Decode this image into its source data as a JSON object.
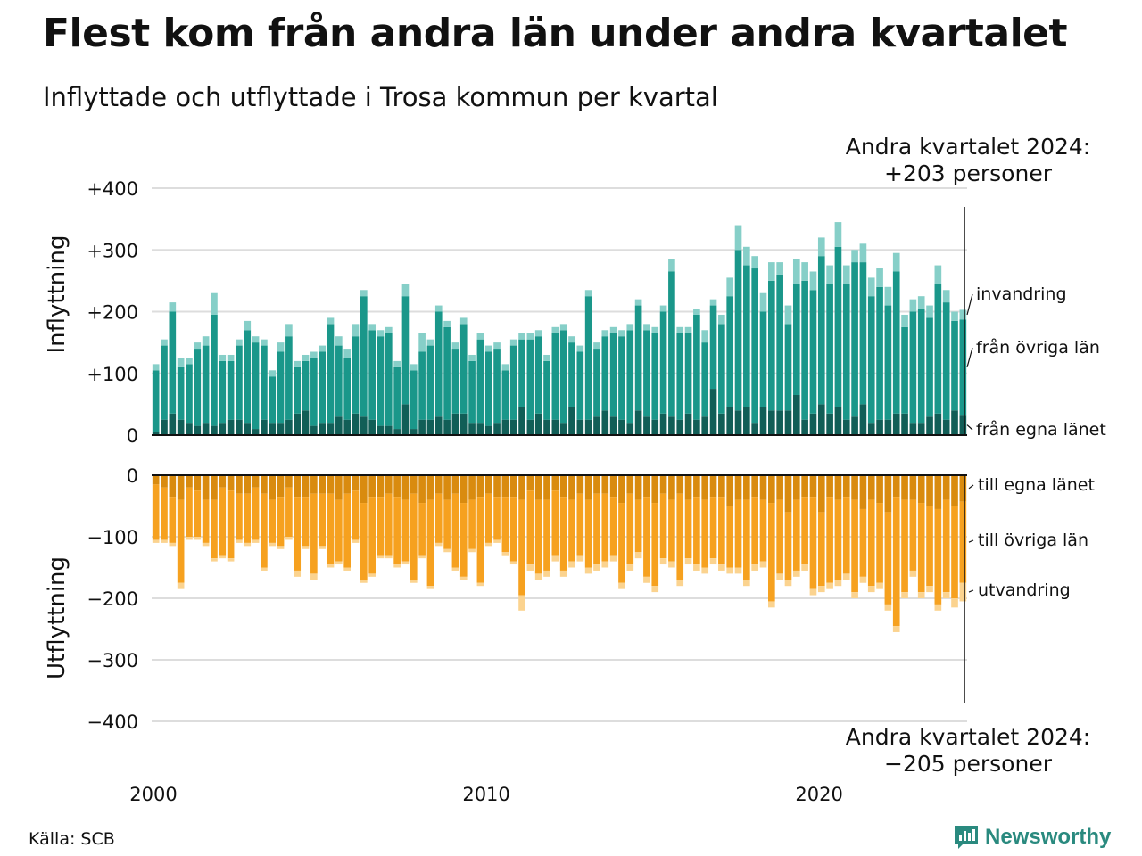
{
  "title": "Flest kom från andra län under andra kvartalet",
  "subtitle": "Inflyttade och utflyttade i Trosa kommun per kvartal",
  "annotations": {
    "top_line1": "Andra kvartalet 2024:",
    "top_line2": "+203 personer",
    "bottom_line1": "Andra kvartalet 2024:",
    "bottom_line2": "−205 personer"
  },
  "source": "Källa: SCB",
  "brand": "Newsworthy",
  "colors": {
    "in_egna": "#115e57",
    "in_ovriga": "#1a978a",
    "in_invandring": "#86cfc8",
    "out_egna": "#d98b0f",
    "out_ovriga": "#f6a11f",
    "out_utvandring": "#fbd38f",
    "grid": "#dddddd",
    "brand": "#2a8a7f"
  },
  "chart_data": {
    "type": "bar",
    "stacked": true,
    "x": [
      "2000Q1",
      "2000Q2",
      "2000Q3",
      "2000Q4",
      "2001Q1",
      "2001Q2",
      "2001Q3",
      "2001Q4",
      "2002Q1",
      "2002Q2",
      "2002Q3",
      "2002Q4",
      "2003Q1",
      "2003Q2",
      "2003Q3",
      "2003Q4",
      "2004Q1",
      "2004Q2",
      "2004Q3",
      "2004Q4",
      "2005Q1",
      "2005Q2",
      "2005Q3",
      "2005Q4",
      "2006Q1",
      "2006Q2",
      "2006Q3",
      "2006Q4",
      "2007Q1",
      "2007Q2",
      "2007Q3",
      "2007Q4",
      "2008Q1",
      "2008Q2",
      "2008Q3",
      "2008Q4",
      "2009Q1",
      "2009Q2",
      "2009Q3",
      "2009Q4",
      "2010Q1",
      "2010Q2",
      "2010Q3",
      "2010Q4",
      "2011Q1",
      "2011Q2",
      "2011Q3",
      "2011Q4",
      "2012Q1",
      "2012Q2",
      "2012Q3",
      "2012Q4",
      "2013Q1",
      "2013Q2",
      "2013Q3",
      "2013Q4",
      "2014Q1",
      "2014Q2",
      "2014Q3",
      "2014Q4",
      "2015Q1",
      "2015Q2",
      "2015Q3",
      "2015Q4",
      "2016Q1",
      "2016Q2",
      "2016Q3",
      "2016Q4",
      "2017Q1",
      "2017Q2",
      "2017Q3",
      "2017Q4",
      "2018Q1",
      "2018Q2",
      "2018Q3",
      "2018Q4",
      "2019Q1",
      "2019Q2",
      "2019Q3",
      "2019Q4",
      "2020Q1",
      "2020Q2",
      "2020Q3",
      "2020Q4",
      "2021Q1",
      "2021Q2",
      "2021Q3",
      "2021Q4",
      "2022Q1",
      "2022Q2",
      "2022Q3",
      "2022Q4",
      "2023Q1",
      "2023Q2",
      "2023Q3",
      "2023Q4",
      "2024Q1",
      "2024Q2"
    ],
    "x_tick_labels": [
      "2000",
      "2010",
      "2020"
    ],
    "upper": {
      "ylabel": "Inflyttning",
      "ylim": [
        0,
        400
      ],
      "y_ticks": [
        "+400",
        "+300",
        "+200",
        "+100",
        "0"
      ],
      "series": [
        {
          "name": "från egna länet",
          "values": [
            5,
            25,
            35,
            25,
            20,
            15,
            20,
            15,
            20,
            25,
            25,
            20,
            10,
            25,
            20,
            20,
            25,
            35,
            40,
            15,
            20,
            20,
            30,
            25,
            35,
            30,
            25,
            15,
            15,
            10,
            50,
            10,
            25,
            25,
            30,
            25,
            35,
            35,
            20,
            20,
            15,
            20,
            25,
            25,
            45,
            25,
            35,
            25,
            25,
            20,
            45,
            25,
            25,
            30,
            40,
            30,
            25,
            20,
            40,
            30,
            25,
            35,
            30,
            25,
            35,
            25,
            30,
            75,
            35,
            45,
            40,
            45,
            20,
            45,
            40,
            40,
            40,
            65,
            25,
            35,
            50,
            35,
            45,
            25,
            30,
            50,
            20,
            25,
            25,
            35,
            35,
            20,
            20,
            30,
            35,
            25,
            40,
            33
          ]
        },
        {
          "name": "från övriga län",
          "values": [
            100,
            120,
            165,
            85,
            95,
            125,
            125,
            180,
            100,
            95,
            120,
            150,
            140,
            120,
            75,
            115,
            135,
            75,
            80,
            110,
            115,
            160,
            115,
            100,
            125,
            195,
            145,
            145,
            150,
            100,
            175,
            95,
            110,
            120,
            170,
            150,
            105,
            145,
            100,
            135,
            120,
            120,
            80,
            120,
            110,
            130,
            125,
            95,
            140,
            150,
            105,
            110,
            200,
            110,
            120,
            135,
            135,
            150,
            170,
            140,
            140,
            165,
            235,
            140,
            130,
            170,
            120,
            135,
            145,
            180,
            260,
            230,
            250,
            155,
            210,
            220,
            140,
            180,
            225,
            200,
            240,
            210,
            260,
            220,
            250,
            230,
            205,
            215,
            185,
            230,
            140,
            180,
            185,
            160,
            210,
            190,
            145,
            154
          ]
        },
        {
          "name": "invandring",
          "values": [
            10,
            10,
            15,
            15,
            10,
            10,
            15,
            35,
            10,
            10,
            10,
            15,
            10,
            10,
            10,
            15,
            20,
            10,
            10,
            10,
            10,
            10,
            15,
            15,
            20,
            10,
            10,
            10,
            10,
            10,
            20,
            10,
            30,
            10,
            10,
            10,
            10,
            10,
            10,
            10,
            10,
            10,
            10,
            10,
            10,
            10,
            10,
            10,
            10,
            10,
            10,
            10,
            10,
            10,
            10,
            10,
            10,
            10,
            10,
            10,
            10,
            10,
            20,
            10,
            10,
            10,
            20,
            10,
            15,
            30,
            40,
            30,
            20,
            30,
            30,
            20,
            30,
            40,
            30,
            30,
            30,
            30,
            40,
            30,
            20,
            30,
            30,
            30,
            30,
            30,
            20,
            20,
            20,
            20,
            30,
            20,
            15,
            16
          ]
        }
      ]
    },
    "lower": {
      "ylabel": "Utflyttning",
      "ylim": [
        -400,
        0
      ],
      "y_ticks": [
        "0",
        "−100",
        "−200",
        "−300",
        "−400"
      ],
      "series": [
        {
          "name": "till egna länet",
          "values": [
            -15,
            -20,
            -35,
            -40,
            -20,
            -25,
            -40,
            -40,
            -20,
            -25,
            -30,
            -30,
            -20,
            -30,
            -40,
            -35,
            -20,
            -35,
            -35,
            -30,
            -30,
            -30,
            -40,
            -30,
            -25,
            -45,
            -35,
            -35,
            -30,
            -35,
            -40,
            -30,
            -45,
            -40,
            -30,
            -40,
            -30,
            -45,
            -40,
            -35,
            -30,
            -35,
            -35,
            -35,
            -40,
            -25,
            -40,
            -40,
            -25,
            -35,
            -40,
            -30,
            -40,
            -30,
            -30,
            -35,
            -45,
            -30,
            -40,
            -35,
            -45,
            -30,
            -40,
            -30,
            -40,
            -35,
            -40,
            -35,
            -35,
            -50,
            -40,
            -40,
            -35,
            -40,
            -45,
            -40,
            -60,
            -40,
            -35,
            -35,
            -60,
            -35,
            -40,
            -35,
            -40,
            -55,
            -40,
            -45,
            -60,
            -35,
            -40,
            -40,
            -45,
            -50,
            -55,
            -40,
            -50,
            -43
          ]
        },
        {
          "name": "till övriga län",
          "values": [
            -90,
            -85,
            -75,
            -135,
            -80,
            -75,
            -70,
            -95,
            -110,
            -110,
            -75,
            -80,
            -85,
            -120,
            -70,
            -80,
            -80,
            -120,
            -80,
            -130,
            -85,
            -115,
            -100,
            -120,
            -80,
            -125,
            -125,
            -95,
            -100,
            -110,
            -100,
            -140,
            -85,
            -140,
            -80,
            -80,
            -120,
            -120,
            -80,
            -140,
            -80,
            -70,
            -90,
            -105,
            -155,
            -120,
            -120,
            -115,
            -105,
            -120,
            -100,
            -100,
            -110,
            -115,
            -110,
            -95,
            -130,
            -115,
            -85,
            -130,
            -135,
            -105,
            -100,
            -140,
            -95,
            -110,
            -110,
            -100,
            -110,
            -100,
            -110,
            -130,
            -110,
            -100,
            -160,
            -120,
            -110,
            -115,
            -110,
            -150,
            -120,
            -140,
            -130,
            -125,
            -150,
            -110,
            -140,
            -130,
            -150,
            -210,
            -150,
            -115,
            -145,
            -130,
            -155,
            -150,
            -150,
            -132
          ]
        },
        {
          "name": "utvandring",
          "values": [
            -5,
            -5,
            -5,
            -10,
            -5,
            -5,
            -5,
            -5,
            -5,
            -5,
            -5,
            -5,
            -5,
            -5,
            -5,
            -5,
            -5,
            -10,
            -5,
            -10,
            -5,
            -5,
            -5,
            -5,
            -5,
            -5,
            -5,
            -5,
            -5,
            -5,
            -5,
            -5,
            -5,
            -5,
            -5,
            -5,
            -5,
            -5,
            -5,
            -5,
            -5,
            -5,
            -5,
            -5,
            -25,
            -10,
            -10,
            -10,
            -10,
            -10,
            -10,
            -10,
            -10,
            -10,
            -10,
            -10,
            -10,
            -10,
            -10,
            -10,
            -10,
            -10,
            -10,
            -10,
            -10,
            -10,
            -10,
            -10,
            -10,
            -10,
            -10,
            -10,
            -10,
            -10,
            -10,
            -10,
            -10,
            -10,
            -10,
            -10,
            -10,
            -10,
            -10,
            -10,
            -10,
            -10,
            -10,
            -10,
            -10,
            -10,
            -10,
            -10,
            -10,
            -10,
            -10,
            -10,
            -15,
            -30
          ]
        }
      ]
    }
  }
}
